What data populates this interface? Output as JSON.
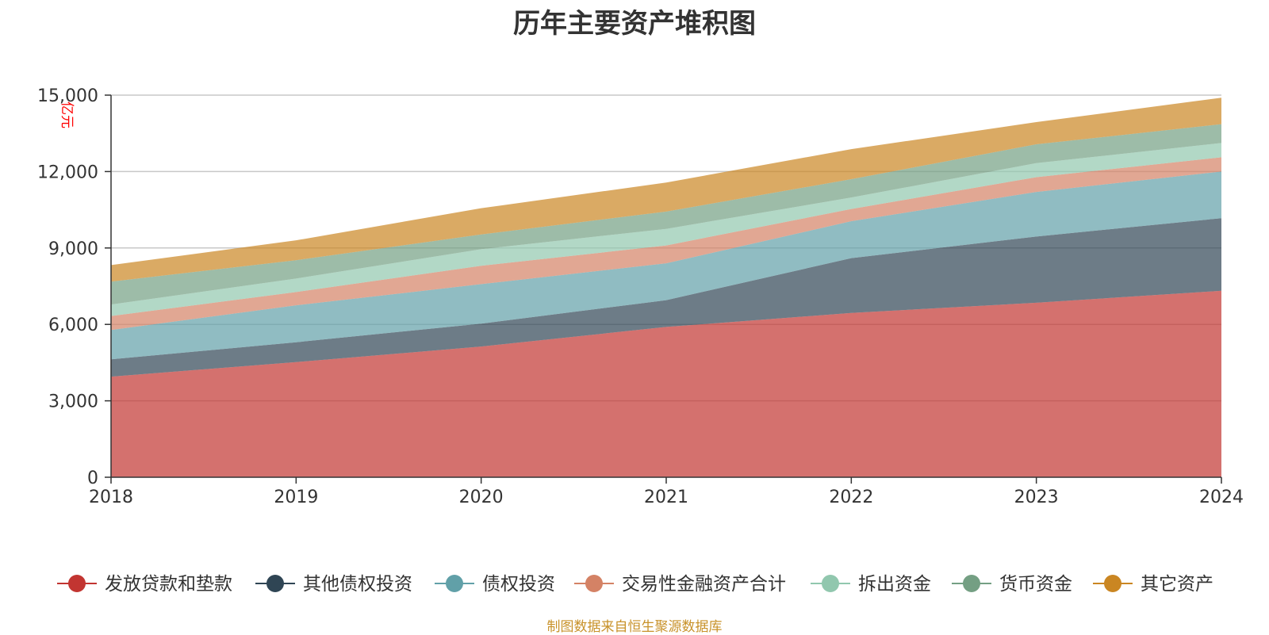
{
  "chart_data": {
    "type": "area",
    "stacked": true,
    "title": "历年主要资产堆积图",
    "ylabel": "亿元",
    "xlabel": "",
    "categories": [
      "2018",
      "2019",
      "2020",
      "2021",
      "2022",
      "2023",
      "2024"
    ],
    "ylim": [
      0,
      15000
    ],
    "yticks": [
      0,
      3000,
      6000,
      9000,
      12000,
      15000
    ],
    "ytick_labels": [
      "0",
      "3,000",
      "6,000",
      "9,000",
      "12,000",
      "15,000"
    ],
    "grid": true,
    "legend_position": "bottom",
    "series": [
      {
        "name": "发放贷款和垫款",
        "color": "#c23531",
        "values": [
          3950,
          4520,
          5130,
          5900,
          6450,
          6850,
          7320
        ]
      },
      {
        "name": "其他债权投资",
        "color": "#2f4554",
        "values": [
          680,
          780,
          900,
          1050,
          2150,
          2600,
          2850
        ]
      },
      {
        "name": "债权投资",
        "color": "#61a0a8",
        "values": [
          1150,
          1450,
          1550,
          1450,
          1450,
          1750,
          1830
        ]
      },
      {
        "name": "交易性金融资产合计",
        "color": "#d48265",
        "values": [
          550,
          520,
          720,
          700,
          480,
          580,
          560
        ]
      },
      {
        "name": "拆出资金",
        "color": "#91c7ae",
        "values": [
          450,
          530,
          650,
          650,
          450,
          550,
          560
        ]
      },
      {
        "name": "货币资金",
        "color": "#749f83",
        "values": [
          900,
          720,
          580,
          680,
          720,
          740,
          740
        ]
      },
      {
        "name": "其它资产",
        "color": "#ca8622",
        "values": [
          650,
          780,
          1030,
          1140,
          1180,
          870,
          1040
        ]
      }
    ],
    "source": "制图数据来自恒生聚源数据库"
  }
}
